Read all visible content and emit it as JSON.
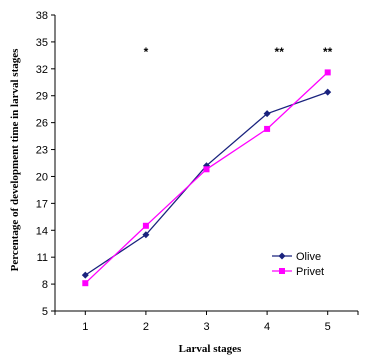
{
  "chart_data": {
    "type": "line",
    "xlabel": "Larval stages",
    "ylabel": "Percentage of development time in larval stages",
    "x": [
      1,
      2,
      3,
      4,
      5
    ],
    "xlim": [
      0.5,
      5.5
    ],
    "ylim": [
      5,
      38
    ],
    "yticks": [
      5,
      8,
      11,
      14,
      17,
      20,
      23,
      26,
      29,
      32,
      35,
      38
    ],
    "grid": false,
    "legend_position": "bottom-right",
    "series": [
      {
        "name": "Olive",
        "values": [
          9.0,
          13.5,
          21.2,
          27.0,
          29.4
        ],
        "color": "#1a237e",
        "marker": "diamond"
      },
      {
        "name": "Privet",
        "values": [
          8.1,
          14.5,
          20.8,
          25.3,
          31.6
        ],
        "color": "#ff00ff",
        "marker": "square"
      }
    ],
    "annotations": [
      {
        "x": 2,
        "text": "*"
      },
      {
        "x": 4.2,
        "text": "**"
      },
      {
        "x": 5,
        "text": "**"
      }
    ]
  }
}
